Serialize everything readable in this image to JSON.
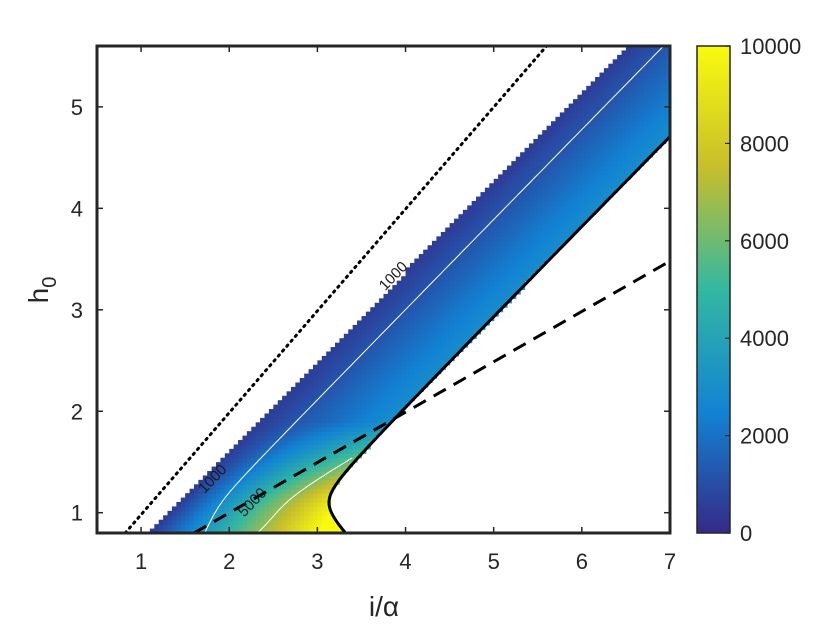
{
  "chart_data": {
    "type": "heatmap",
    "title": "",
    "xlabel": "i/α",
    "ylabel": "h",
    "ylabel_subscript": "0",
    "xlim": [
      0.5,
      7
    ],
    "ylim": [
      0.8,
      5.6
    ],
    "xticks": [
      1,
      2,
      3,
      4,
      5,
      6,
      7
    ],
    "yticks": [
      1,
      2,
      3,
      4,
      5
    ],
    "grid": false,
    "colorbar": {
      "min": 0,
      "max": 10000,
      "ticks": [
        0,
        2000,
        4000,
        6000,
        8000,
        10000
      ],
      "colormap": "parula"
    },
    "region": {
      "upper_boundary_line": {
        "x0": 1.1,
        "slope": 0.8877
      },
      "lower_boundary_curve": {
        "vertex_x": 2.92,
        "vertex_y": 1.1,
        "a": 0.8,
        "b": 0.7083
      },
      "fill_colors": [
        "#352A87",
        "#1283D4",
        "#33B8A1",
        "#C7BE2B",
        "#F9FB0E"
      ]
    },
    "contours": [
      {
        "level": 1000,
        "label": "1000"
      },
      {
        "level": 5000,
        "label": "5000"
      }
    ],
    "reference_lines": [
      {
        "style": "dotted",
        "x": [
          0.82,
          5.6
        ],
        "y": [
          0.8,
          5.6
        ]
      },
      {
        "style": "dashed",
        "x": [
          1.6,
          7.0
        ],
        "y": [
          0.8,
          3.48
        ]
      },
      {
        "style": "solid",
        "description": "lower boundary of shaded region"
      }
    ]
  }
}
